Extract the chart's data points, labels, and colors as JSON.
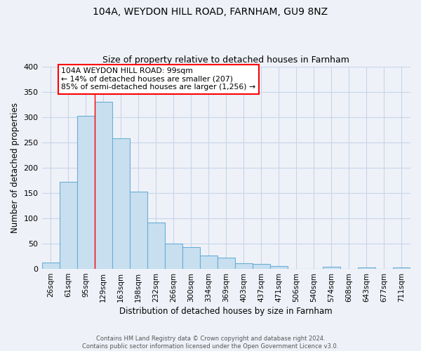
{
  "title": "104A, WEYDON HILL ROAD, FARNHAM, GU9 8NZ",
  "subtitle": "Size of property relative to detached houses in Farnham",
  "xlabel": "Distribution of detached houses by size in Farnham",
  "ylabel": "Number of detached properties",
  "footer_line1": "Contains HM Land Registry data © Crown copyright and database right 2024.",
  "footer_line2": "Contains public sector information licensed under the Open Government Licence v3.0.",
  "bar_labels": [
    "26sqm",
    "61sqm",
    "95sqm",
    "129sqm",
    "163sqm",
    "198sqm",
    "232sqm",
    "266sqm",
    "300sqm",
    "334sqm",
    "369sqm",
    "403sqm",
    "437sqm",
    "471sqm",
    "506sqm",
    "540sqm",
    "574sqm",
    "608sqm",
    "643sqm",
    "677sqm",
    "711sqm"
  ],
  "bar_values": [
    13,
    172,
    303,
    330,
    258,
    153,
    92,
    50,
    43,
    27,
    22,
    11,
    10,
    5,
    0,
    0,
    4,
    0,
    3,
    0,
    3
  ],
  "bar_color": "#c8dff0",
  "bar_edge_color": "#6aaed6",
  "ylim": [
    0,
    400
  ],
  "yticks": [
    0,
    50,
    100,
    150,
    200,
    250,
    300,
    350,
    400
  ],
  "annotation_line1": "104A WEYDON HILL ROAD: 99sqm",
  "annotation_line2": "← 14% of detached houses are smaller (207)",
  "annotation_line3": "85% of semi-detached houses are larger (1,256) →",
  "marker_bar_index": 2,
  "background_color": "#eef2f8",
  "grid_color": "#c8d4e8",
  "title_fontsize": 10,
  "subtitle_fontsize": 9
}
